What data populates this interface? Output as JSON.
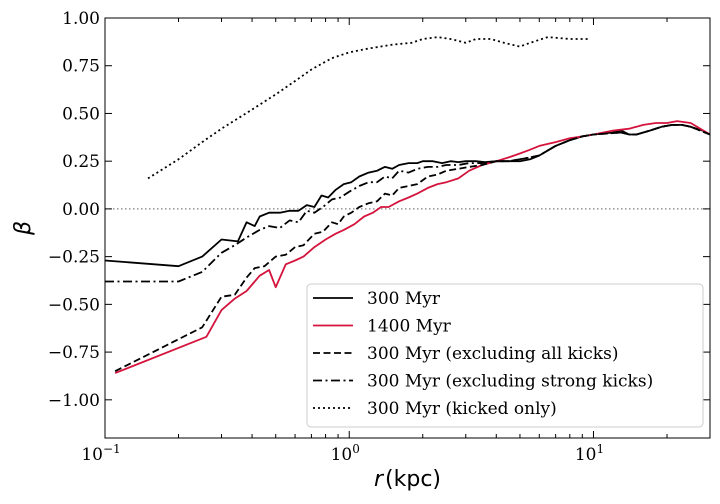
{
  "chart_data": {
    "type": "line",
    "xscale": "log",
    "xlim": [
      0.1,
      30
    ],
    "ylim": [
      -1.2,
      1.0
    ],
    "xlabel_var": "r",
    "xlabel_unit": "(kpc)",
    "ylabel": "β",
    "x_ticks": [
      {
        "value": 0.1,
        "base": "10",
        "exp": "−1"
      },
      {
        "value": 1,
        "base": "10",
        "exp": "0"
      },
      {
        "value": 10,
        "base": "10",
        "exp": "1"
      }
    ],
    "y_ticks": [
      {
        "value": 1.0,
        "label": "1.00"
      },
      {
        "value": 0.75,
        "label": "0.75"
      },
      {
        "value": 0.5,
        "label": "0.50"
      },
      {
        "value": 0.25,
        "label": "0.25"
      },
      {
        "value": 0.0,
        "label": "0.00"
      },
      {
        "value": -0.25,
        "label": "−0.25"
      },
      {
        "value": -0.5,
        "label": "−0.50"
      },
      {
        "value": -0.75,
        "label": "−0.75"
      },
      {
        "value": -1.0,
        "label": "−1.00"
      }
    ],
    "reference_line": {
      "y": 0.0,
      "style": "dotted",
      "color": "#808080"
    },
    "legend_position": "lower-right",
    "series": [
      {
        "name": "300 Myr",
        "color": "#000000",
        "dash": "solid",
        "points": [
          [
            0.1,
            -0.27
          ],
          [
            0.2,
            -0.3
          ],
          [
            0.25,
            -0.25
          ],
          [
            0.3,
            -0.16
          ],
          [
            0.35,
            -0.17
          ],
          [
            0.38,
            -0.07
          ],
          [
            0.41,
            -0.09
          ],
          [
            0.43,
            -0.04
          ],
          [
            0.47,
            -0.02
          ],
          [
            0.52,
            -0.02
          ],
          [
            0.57,
            -0.01
          ],
          [
            0.62,
            -0.01
          ],
          [
            0.67,
            0.02
          ],
          [
            0.72,
            0.01
          ],
          [
            0.77,
            0.07
          ],
          [
            0.82,
            0.06
          ],
          [
            0.88,
            0.1
          ],
          [
            0.95,
            0.13
          ],
          [
            1.02,
            0.14
          ],
          [
            1.1,
            0.17
          ],
          [
            1.2,
            0.19
          ],
          [
            1.3,
            0.2
          ],
          [
            1.4,
            0.22
          ],
          [
            1.5,
            0.21
          ],
          [
            1.6,
            0.23
          ],
          [
            1.75,
            0.24
          ],
          [
            1.9,
            0.24
          ],
          [
            2.0,
            0.25
          ],
          [
            2.2,
            0.25
          ],
          [
            2.4,
            0.24
          ],
          [
            2.6,
            0.25
          ],
          [
            2.8,
            0.245
          ],
          [
            3.0,
            0.25
          ],
          [
            3.3,
            0.25
          ],
          [
            3.6,
            0.245
          ],
          [
            4.0,
            0.25
          ],
          [
            4.5,
            0.25
          ],
          [
            5.0,
            0.25
          ],
          [
            5.5,
            0.26
          ],
          [
            6.0,
            0.28
          ],
          [
            7.0,
            0.33
          ],
          [
            8.0,
            0.36
          ],
          [
            9.0,
            0.38
          ],
          [
            10,
            0.39
          ],
          [
            12,
            0.4
          ],
          [
            13,
            0.41
          ],
          [
            14,
            0.39
          ],
          [
            15,
            0.39
          ],
          [
            17,
            0.41
          ],
          [
            19,
            0.43
          ],
          [
            21,
            0.44
          ],
          [
            23,
            0.44
          ],
          [
            25,
            0.43
          ],
          [
            28,
            0.41
          ],
          [
            30,
            0.39
          ]
        ]
      },
      {
        "name": "1400 Myr",
        "color": "#d4143c",
        "dash": "solid",
        "points": [
          [
            0.11,
            -0.86
          ],
          [
            0.26,
            -0.67
          ],
          [
            0.3,
            -0.53
          ],
          [
            0.34,
            -0.47
          ],
          [
            0.38,
            -0.43
          ],
          [
            0.43,
            -0.35
          ],
          [
            0.47,
            -0.32
          ],
          [
            0.5,
            -0.41
          ],
          [
            0.55,
            -0.29
          ],
          [
            0.6,
            -0.27
          ],
          [
            0.65,
            -0.25
          ],
          [
            0.72,
            -0.2
          ],
          [
            0.8,
            -0.16
          ],
          [
            0.88,
            -0.13
          ],
          [
            0.95,
            -0.11
          ],
          [
            1.05,
            -0.08
          ],
          [
            1.15,
            -0.04
          ],
          [
            1.25,
            -0.02
          ],
          [
            1.35,
            0.01
          ],
          [
            1.45,
            0.01
          ],
          [
            1.6,
            0.04
          ],
          [
            1.75,
            0.06
          ],
          [
            1.9,
            0.08
          ],
          [
            2.1,
            0.11
          ],
          [
            2.3,
            0.13
          ],
          [
            2.5,
            0.14
          ],
          [
            2.8,
            0.16
          ],
          [
            3.1,
            0.2
          ],
          [
            3.5,
            0.23
          ],
          [
            4.0,
            0.25
          ],
          [
            4.5,
            0.27
          ],
          [
            5.0,
            0.29
          ],
          [
            5.5,
            0.31
          ],
          [
            6.0,
            0.33
          ],
          [
            7.0,
            0.35
          ],
          [
            8.0,
            0.37
          ],
          [
            9.0,
            0.38
          ],
          [
            10,
            0.39
          ],
          [
            12,
            0.41
          ],
          [
            14,
            0.42
          ],
          [
            16,
            0.44
          ],
          [
            18,
            0.45
          ],
          [
            20,
            0.45
          ],
          [
            22,
            0.46
          ],
          [
            25,
            0.45
          ],
          [
            30,
            0.39
          ]
        ]
      },
      {
        "name": "300 Myr (excluding all kicks)",
        "color": "#000000",
        "dash": "dashed",
        "points": [
          [
            0.11,
            -0.85
          ],
          [
            0.25,
            -0.62
          ],
          [
            0.3,
            -0.46
          ],
          [
            0.34,
            -0.45
          ],
          [
            0.38,
            -0.36
          ],
          [
            0.41,
            -0.31
          ],
          [
            0.45,
            -0.3
          ],
          [
            0.5,
            -0.25
          ],
          [
            0.55,
            -0.24
          ],
          [
            0.6,
            -0.2
          ],
          [
            0.65,
            -0.19
          ],
          [
            0.72,
            -0.13
          ],
          [
            0.78,
            -0.12
          ],
          [
            0.85,
            -0.07
          ],
          [
            0.9,
            -0.08
          ],
          [
            0.95,
            -0.04
          ],
          [
            1.02,
            -0.02
          ],
          [
            1.1,
            0.01
          ],
          [
            1.2,
            0.03
          ],
          [
            1.3,
            0.04
          ],
          [
            1.4,
            0.08
          ],
          [
            1.5,
            0.07
          ],
          [
            1.6,
            0.11
          ],
          [
            1.75,
            0.12
          ],
          [
            1.9,
            0.13
          ],
          [
            2.1,
            0.17
          ],
          [
            2.3,
            0.18
          ],
          [
            2.5,
            0.2
          ],
          [
            2.8,
            0.21
          ],
          [
            3.1,
            0.22
          ],
          [
            3.5,
            0.23
          ],
          [
            4.0,
            0.25
          ],
          [
            4.5,
            0.25
          ],
          [
            5.0,
            0.26
          ],
          [
            5.5,
            0.27
          ],
          [
            6.0,
            0.28
          ],
          [
            7.0,
            0.33
          ],
          [
            8.0,
            0.36
          ],
          [
            9.0,
            0.38
          ],
          [
            10,
            0.39
          ],
          [
            13,
            0.4
          ],
          [
            14,
            0.39
          ],
          [
            15,
            0.39
          ],
          [
            17,
            0.41
          ],
          [
            19,
            0.43
          ],
          [
            21,
            0.44
          ],
          [
            23,
            0.44
          ],
          [
            25,
            0.43
          ],
          [
            30,
            0.39
          ]
        ]
      },
      {
        "name": "300 Myr (excluding strong kicks)",
        "color": "#000000",
        "dash": "dashdot",
        "points": [
          [
            0.1,
            -0.38
          ],
          [
            0.2,
            -0.38
          ],
          [
            0.25,
            -0.33
          ],
          [
            0.3,
            -0.23
          ],
          [
            0.34,
            -0.19
          ],
          [
            0.38,
            -0.15
          ],
          [
            0.43,
            -0.11
          ],
          [
            0.47,
            -0.09
          ],
          [
            0.52,
            -0.1
          ],
          [
            0.57,
            -0.06
          ],
          [
            0.62,
            -0.07
          ],
          [
            0.67,
            -0.01
          ],
          [
            0.72,
            -0.02
          ],
          [
            0.78,
            0.01
          ],
          [
            0.85,
            0.05
          ],
          [
            0.92,
            0.06
          ],
          [
            1.0,
            0.09
          ],
          [
            1.1,
            0.12
          ],
          [
            1.2,
            0.14
          ],
          [
            1.3,
            0.14
          ],
          [
            1.4,
            0.17
          ],
          [
            1.5,
            0.16
          ],
          [
            1.6,
            0.2
          ],
          [
            1.75,
            0.19
          ],
          [
            1.9,
            0.21
          ],
          [
            2.1,
            0.22
          ],
          [
            2.3,
            0.22
          ],
          [
            2.5,
            0.23
          ],
          [
            2.8,
            0.23
          ],
          [
            3.1,
            0.24
          ],
          [
            3.5,
            0.24
          ],
          [
            4.0,
            0.25
          ],
          [
            4.5,
            0.25
          ],
          [
            5.0,
            0.26
          ],
          [
            5.5,
            0.27
          ],
          [
            6.0,
            0.28
          ],
          [
            7.0,
            0.33
          ],
          [
            8.0,
            0.36
          ],
          [
            9.0,
            0.38
          ],
          [
            10,
            0.39
          ],
          [
            13,
            0.4
          ],
          [
            14,
            0.39
          ],
          [
            15,
            0.39
          ],
          [
            17,
            0.41
          ],
          [
            19,
            0.43
          ],
          [
            21,
            0.44
          ],
          [
            23,
            0.44
          ],
          [
            25,
            0.43
          ],
          [
            30,
            0.39
          ]
        ]
      },
      {
        "name": "300 Myr (kicked only)",
        "color": "#000000",
        "dash": "dotted",
        "points": [
          [
            0.15,
            0.16
          ],
          [
            0.2,
            0.26
          ],
          [
            0.25,
            0.35
          ],
          [
            0.3,
            0.42
          ],
          [
            0.4,
            0.52
          ],
          [
            0.5,
            0.6
          ],
          [
            0.6,
            0.67
          ],
          [
            0.7,
            0.73
          ],
          [
            0.85,
            0.79
          ],
          [
            1.0,
            0.82
          ],
          [
            1.2,
            0.84
          ],
          [
            1.5,
            0.86
          ],
          [
            1.8,
            0.87
          ],
          [
            2.0,
            0.89
          ],
          [
            2.3,
            0.9
          ],
          [
            2.6,
            0.89
          ],
          [
            3.0,
            0.87
          ],
          [
            3.3,
            0.89
          ],
          [
            3.8,
            0.89
          ],
          [
            4.3,
            0.87
          ],
          [
            5.0,
            0.85
          ],
          [
            5.5,
            0.87
          ],
          [
            6.5,
            0.9
          ],
          [
            8.0,
            0.89
          ],
          [
            9.5,
            0.89
          ]
        ]
      }
    ]
  }
}
